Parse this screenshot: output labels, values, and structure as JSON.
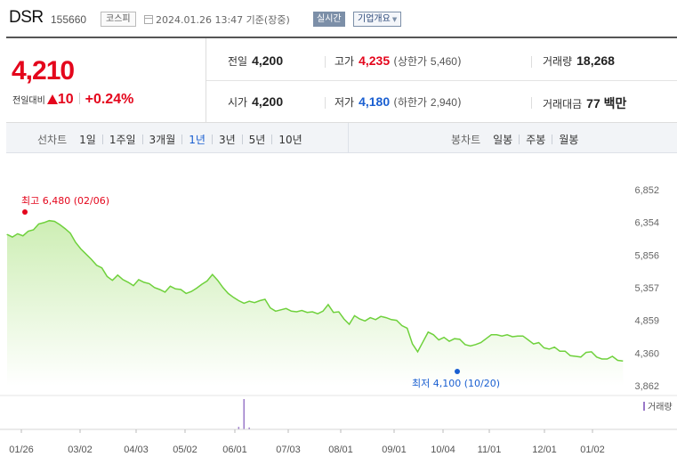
{
  "header": {
    "name": "DSR",
    "code": "155660",
    "market": "코스피",
    "datetime": "2024.01.26 13:47 기준(장중)",
    "realtime_label": "실시간",
    "corp_info_label": "기업개요"
  },
  "quote": {
    "current_price": "4,210",
    "change_label": "전일대비",
    "change_value": "10",
    "change_direction": "up",
    "change_pct": "+0.24%",
    "prev_close_label": "전일",
    "prev_close": "4,200",
    "open_label": "시가",
    "open": "4,200",
    "high_label": "고가",
    "high": "4,235",
    "low_label": "저가",
    "low": "4,180",
    "upper_limit_label": "상한가",
    "upper_limit": "5,460",
    "lower_limit_label": "하한가",
    "lower_limit": "2,940",
    "volume_label": "거래량",
    "volume": "18,268",
    "amount_label": "거래대금",
    "amount": "77 백만"
  },
  "tabs": {
    "line_chart_label": "선차트",
    "line_periods": [
      "1일",
      "1주일",
      "3개월",
      "1년",
      "3년",
      "5년",
      "10년"
    ],
    "active_period": "1년",
    "candle_chart_label": "봉차트",
    "candle_periods": [
      "일봉",
      "주봉",
      "월봉"
    ]
  },
  "chart_data": {
    "type": "area",
    "title": "",
    "xlabel": "",
    "ylabel": "",
    "ylim": [
      3862,
      6852
    ],
    "y_ticks": [
      "6,852",
      "6,354",
      "5,856",
      "5,357",
      "4,859",
      "4,360",
      "3,862"
    ],
    "x_ticks": [
      "01/26",
      "03/02",
      "04/03",
      "05/02",
      "06/01",
      "07/03",
      "08/01",
      "09/01",
      "10/04",
      "11/01",
      "12/01",
      "01/02"
    ],
    "high_annotation": "최고 6,480 (02/06)",
    "low_annotation": "최저 4,100 (10/20)",
    "high_value": 6480,
    "low_value": 4100,
    "volume_legend": "거래량",
    "line_color": "#6fd13c",
    "fill_top_color": "#cdeeb4",
    "high_color": "#e4061c",
    "low_color": "#1a5fd1",
    "x_index_range": [
      0,
      240
    ],
    "series": [
      {
        "values": [
          [
            0,
            6170
          ],
          [
            2,
            6130
          ],
          [
            4,
            6180
          ],
          [
            6,
            6150
          ],
          [
            8,
            6220
          ],
          [
            10,
            6240
          ],
          [
            12,
            6330
          ],
          [
            14,
            6350
          ],
          [
            16,
            6380
          ],
          [
            18,
            6370
          ],
          [
            20,
            6320
          ],
          [
            22,
            6260
          ],
          [
            24,
            6190
          ],
          [
            26,
            6050
          ],
          [
            28,
            5950
          ],
          [
            30,
            5870
          ],
          [
            32,
            5790
          ],
          [
            34,
            5700
          ],
          [
            36,
            5660
          ],
          [
            38,
            5530
          ],
          [
            40,
            5470
          ],
          [
            42,
            5550
          ],
          [
            44,
            5480
          ],
          [
            46,
            5440
          ],
          [
            48,
            5390
          ],
          [
            50,
            5480
          ],
          [
            52,
            5440
          ],
          [
            54,
            5420
          ],
          [
            56,
            5360
          ],
          [
            58,
            5330
          ],
          [
            60,
            5290
          ],
          [
            62,
            5380
          ],
          [
            64,
            5340
          ],
          [
            66,
            5330
          ],
          [
            68,
            5270
          ],
          [
            70,
            5300
          ],
          [
            72,
            5350
          ],
          [
            74,
            5410
          ],
          [
            76,
            5460
          ],
          [
            78,
            5560
          ],
          [
            80,
            5470
          ],
          [
            82,
            5360
          ],
          [
            84,
            5270
          ],
          [
            86,
            5210
          ],
          [
            88,
            5160
          ],
          [
            90,
            5120
          ],
          [
            92,
            5150
          ],
          [
            94,
            5130
          ],
          [
            96,
            5160
          ],
          [
            98,
            5180
          ],
          [
            100,
            5050
          ],
          [
            102,
            5000
          ],
          [
            104,
            5020
          ],
          [
            106,
            5040
          ],
          [
            108,
            5000
          ],
          [
            110,
            4990
          ],
          [
            112,
            5010
          ],
          [
            114,
            4980
          ],
          [
            116,
            4990
          ],
          [
            118,
            4960
          ],
          [
            120,
            5000
          ],
          [
            122,
            5100
          ],
          [
            124,
            4980
          ],
          [
            126,
            4990
          ],
          [
            128,
            4880
          ],
          [
            130,
            4800
          ],
          [
            132,
            4930
          ],
          [
            134,
            4880
          ],
          [
            136,
            4850
          ],
          [
            138,
            4900
          ],
          [
            140,
            4870
          ],
          [
            142,
            4920
          ],
          [
            144,
            4900
          ],
          [
            146,
            4870
          ],
          [
            148,
            4860
          ],
          [
            150,
            4780
          ],
          [
            152,
            4740
          ],
          [
            154,
            4500
          ],
          [
            156,
            4380
          ],
          [
            158,
            4530
          ],
          [
            160,
            4680
          ],
          [
            162,
            4640
          ],
          [
            164,
            4560
          ],
          [
            166,
            4600
          ],
          [
            168,
            4540
          ],
          [
            170,
            4580
          ],
          [
            172,
            4570
          ],
          [
            174,
            4490
          ],
          [
            176,
            4470
          ],
          [
            178,
            4490
          ],
          [
            180,
            4520
          ],
          [
            182,
            4580
          ],
          [
            184,
            4640
          ],
          [
            186,
            4640
          ],
          [
            188,
            4620
          ],
          [
            190,
            4640
          ],
          [
            192,
            4610
          ],
          [
            194,
            4620
          ],
          [
            196,
            4620
          ],
          [
            198,
            4560
          ],
          [
            200,
            4500
          ],
          [
            202,
            4520
          ],
          [
            204,
            4440
          ],
          [
            206,
            4420
          ],
          [
            208,
            4450
          ],
          [
            210,
            4390
          ],
          [
            212,
            4390
          ],
          [
            214,
            4320
          ],
          [
            216,
            4310
          ],
          [
            218,
            4300
          ],
          [
            220,
            4370
          ],
          [
            222,
            4380
          ],
          [
            224,
            4300
          ],
          [
            226,
            4270
          ],
          [
            228,
            4270
          ],
          [
            230,
            4310
          ],
          [
            232,
            4250
          ],
          [
            234,
            4240
          ]
        ]
      }
    ],
    "volume_series": [
      {
        "index": 90,
        "relative": 1.0
      },
      {
        "index": 88,
        "relative": 0.08
      },
      {
        "index": 92,
        "relative": 0.06
      }
    ]
  }
}
